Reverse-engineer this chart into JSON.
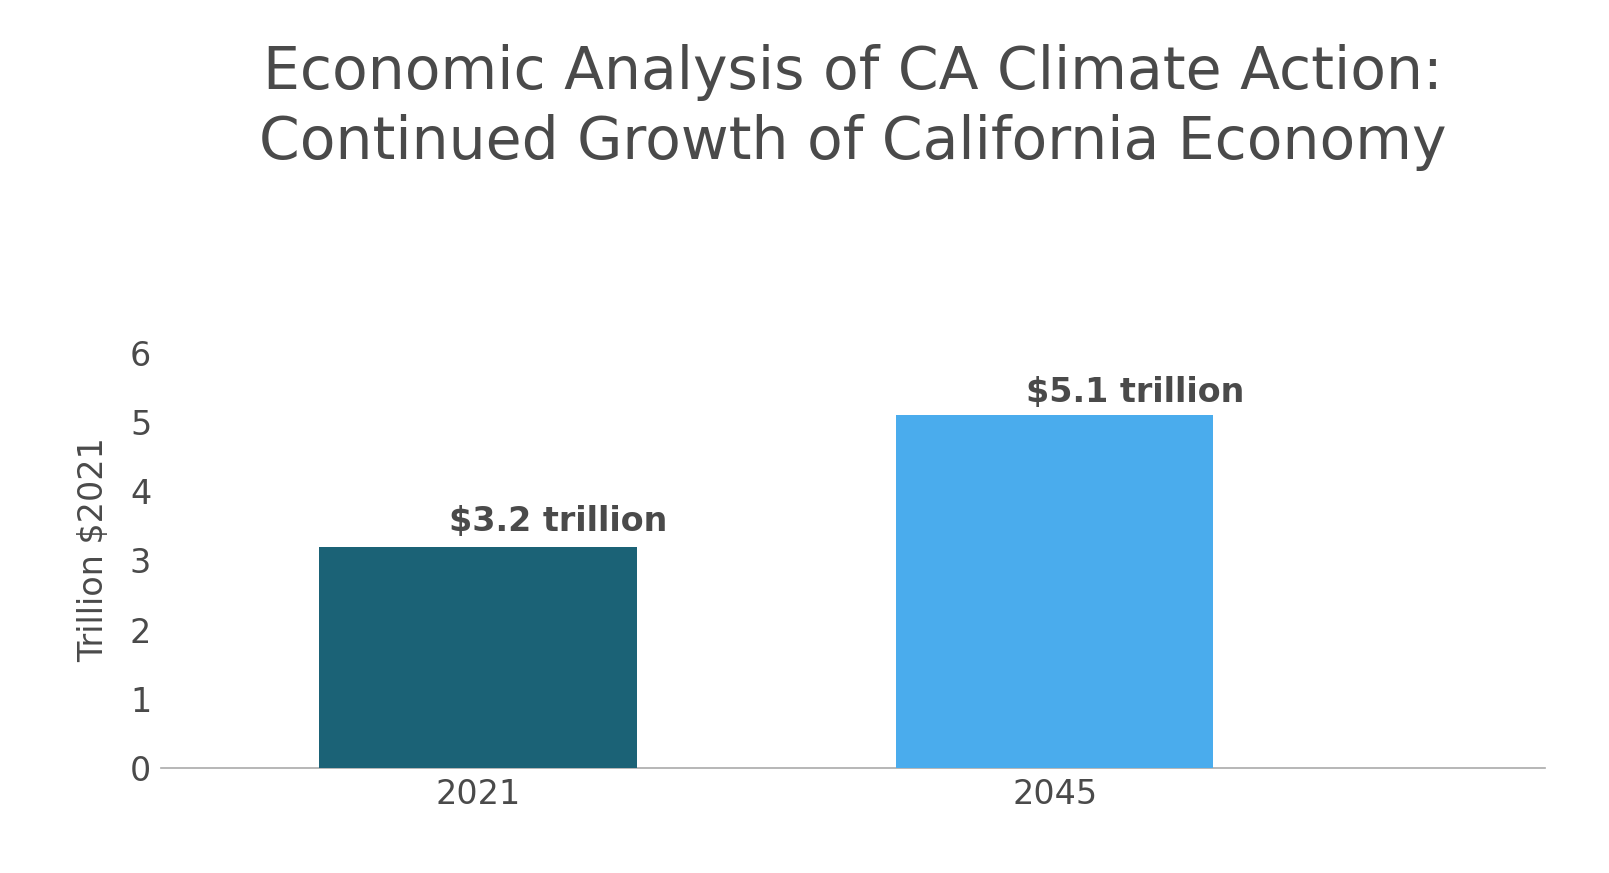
{
  "title": "Economic Analysis of CA Climate Action:\nContinued Growth of California Economy",
  "categories": [
    "2021",
    "2045"
  ],
  "values": [
    3.2,
    5.1
  ],
  "bar_colors": [
    "#1b6276",
    "#4aaced"
  ],
  "bar_labels": [
    "$3.2 trillion",
    "$5.1 trillion"
  ],
  "ylabel": "Trillion $2021",
  "ylim": [
    0,
    6.3
  ],
  "yticks": [
    0,
    1,
    2,
    3,
    4,
    5,
    6
  ],
  "title_fontsize": 42,
  "tick_fontsize": 24,
  "bar_label_fontsize": 24,
  "ylabel_fontsize": 24,
  "background_color": "#ffffff",
  "text_color": "#4a4a4a",
  "bar_width": 0.55,
  "x_positions": [
    1,
    2
  ],
  "xlim": [
    0.45,
    2.85
  ]
}
